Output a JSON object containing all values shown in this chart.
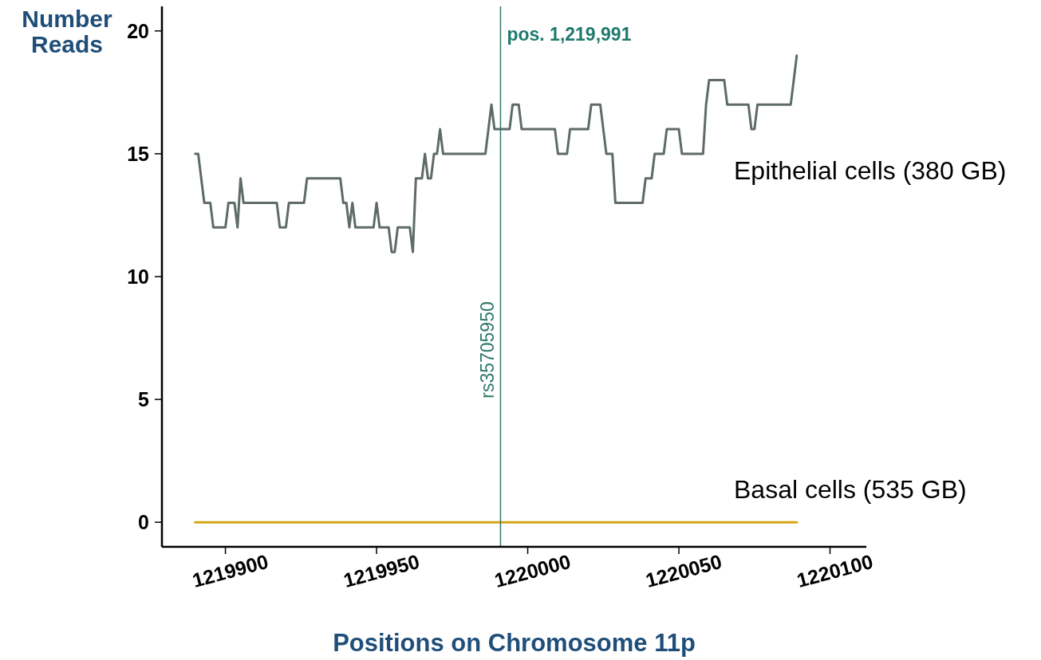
{
  "chart_data": {
    "type": "line",
    "xlabel": "Positions on Chromosome 11p",
    "ylabel": "Number Reads",
    "xlim": [
      1219879,
      1220112
    ],
    "ylim": [
      -1,
      21
    ],
    "xticks": [
      1219900,
      1219950,
      1220000,
      1220050,
      1220100
    ],
    "yticks": [
      0,
      5,
      10,
      15,
      20
    ],
    "series": [
      {
        "name": "Epithelial cells (380 GB)",
        "color": "#5f6b69",
        "x": [
          1219890,
          1219891,
          1219892,
          1219893,
          1219895,
          1219896,
          1219900,
          1219901,
          1219903,
          1219904,
          1219905,
          1219906,
          1219917,
          1219918,
          1219920,
          1219921,
          1219926,
          1219927,
          1219938,
          1219939,
          1219940,
          1219941,
          1219942,
          1219943,
          1219949,
          1219950,
          1219951,
          1219954,
          1219955,
          1219956,
          1219957,
          1219961,
          1219962,
          1219963,
          1219965,
          1219966,
          1219967,
          1219968,
          1219969,
          1219970,
          1219971,
          1219972,
          1219986,
          1219987,
          1219988,
          1219989,
          1219994,
          1219995,
          1219997,
          1219998,
          1220009,
          1220010,
          1220013,
          1220014,
          1220020,
          1220021,
          1220024,
          1220025,
          1220026,
          1220028,
          1220029,
          1220038,
          1220039,
          1220041,
          1220042,
          1220045,
          1220046,
          1220050,
          1220051,
          1220058,
          1220059,
          1220060,
          1220065,
          1220066,
          1220073,
          1220074,
          1220075,
          1220076,
          1220087,
          1220088,
          1220089
        ],
        "values": [
          15,
          15,
          14,
          13,
          13,
          12,
          12,
          13,
          13,
          12,
          14,
          13,
          13,
          12,
          12,
          13,
          13,
          14,
          14,
          13,
          13,
          12,
          13,
          12,
          12,
          13,
          12,
          12,
          11,
          11,
          12,
          12,
          11,
          14,
          14,
          15,
          14,
          14,
          15,
          15,
          16,
          15,
          15,
          16,
          17,
          16,
          16,
          17,
          17,
          16,
          16,
          15,
          15,
          16,
          16,
          17,
          17,
          16,
          15,
          15,
          13,
          13,
          14,
          14,
          15,
          15,
          16,
          16,
          15,
          15,
          17,
          18,
          18,
          17,
          17,
          16,
          16,
          17,
          17,
          18,
          19
        ]
      },
      {
        "name": "Basal cells (535 GB)",
        "color": "#d4a514",
        "x": [
          1219890,
          1220089
        ],
        "values": [
          0,
          0
        ]
      }
    ],
    "ref_lines": [
      {
        "axis": "x",
        "value": 1219991,
        "label": "rs35705950",
        "color": "#2f7a6a"
      }
    ],
    "annotations": [
      {
        "text": "pos. 1,219,991",
        "x": 1219991,
        "y": 20
      }
    ]
  }
}
